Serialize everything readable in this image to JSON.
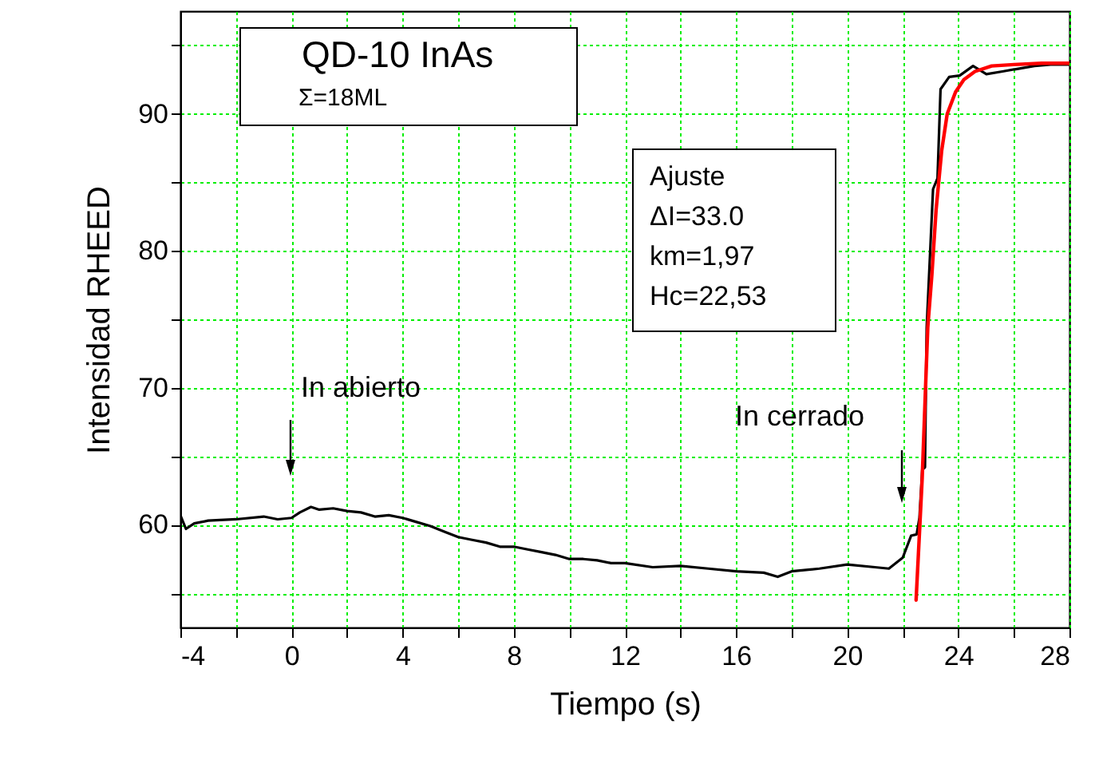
{
  "chart_data": {
    "type": "line",
    "xlabel": "Tiempo (s)",
    "ylabel": "Intensidad RHEED",
    "xlim": [
      -4,
      28
    ],
    "ylim": [
      52.5,
      97.5
    ],
    "xticks": [
      -4,
      {
        "value": -2,
        "label": null
      },
      0,
      {
        "value": 2,
        "label": null
      },
      4,
      {
        "value": 6,
        "label": null
      },
      8,
      {
        "value": 10,
        "label": null
      },
      12,
      {
        "value": 14,
        "label": null
      },
      16,
      {
        "value": 18,
        "label": null
      },
      20,
      {
        "value": 22,
        "label": null
      },
      24,
      {
        "value": 26,
        "label": null
      },
      28
    ],
    "yticks": [
      {
        "value": 55,
        "label": null
      },
      60,
      {
        "value": 65,
        "label": null
      },
      70,
      {
        "value": 75,
        "label": null
      },
      80,
      {
        "value": 85,
        "label": null
      },
      90,
      {
        "value": 95,
        "label": null
      }
    ],
    "grid": true,
    "series": [
      {
        "color": "#000000",
        "x": [
          -4,
          -3.8,
          -3.5,
          -3,
          -2,
          -1,
          -0.5,
          0,
          0.3,
          0.7,
          1,
          1.5,
          2,
          2.5,
          3,
          3.5,
          4,
          4.5,
          5,
          5.5,
          6,
          6.5,
          7,
          7.5,
          8,
          8.5,
          9,
          9.5,
          10,
          10.5,
          11,
          11.5,
          12,
          13,
          14,
          15,
          16,
          17,
          17.5,
          18,
          19,
          20,
          21,
          21.5,
          22,
          22.3,
          22.5,
          22.6,
          22.7,
          22.8,
          22.86,
          23.09,
          23.25,
          23.36,
          23.67,
          24.05,
          24.53,
          25.01,
          25.59,
          26.16,
          26.74,
          27.32,
          28
        ],
        "values": [
          60.7,
          59.7,
          60.1,
          60.3,
          60.4,
          60.6,
          60.4,
          60.5,
          60.9,
          61.3,
          61.1,
          61.2,
          61.0,
          60.9,
          60.6,
          60.7,
          60.5,
          60.2,
          59.9,
          59.5,
          59.1,
          58.9,
          58.7,
          58.4,
          58.4,
          58.2,
          58.0,
          57.8,
          57.5,
          57.5,
          57.4,
          57.2,
          57.2,
          56.9,
          57.0,
          56.8,
          56.6,
          56.5,
          56.2,
          56.6,
          56.8,
          57.1,
          56.9,
          56.8,
          57.6,
          59.2,
          59.3,
          60.5,
          64.0,
          64.2,
          74.4,
          84.5,
          85.3,
          91.8,
          92.7,
          92.8,
          93.5,
          92.9,
          93.1,
          93.3,
          93.5,
          93.6,
          93.6
        ]
      },
      {
        "color": "#ff0000",
        "x": [
          22.48,
          22.7,
          22.9,
          23.05,
          23.2,
          23.4,
          23.6,
          23.9,
          24.2,
          24.6,
          25.2,
          26,
          27,
          28
        ],
        "values": [
          54.5,
          63.4,
          74.4,
          78.3,
          83.0,
          87.3,
          90.0,
          91.6,
          92.5,
          93.1,
          93.5,
          93.6,
          93.7,
          93.7
        ]
      }
    ],
    "annotations": [
      "QD-10 InAs",
      "Σ=18ML",
      "Ajuste",
      "ΔI=33.0",
      "km=1,97",
      "Hc=22,53",
      "In abierto",
      "In cerrado"
    ]
  }
}
